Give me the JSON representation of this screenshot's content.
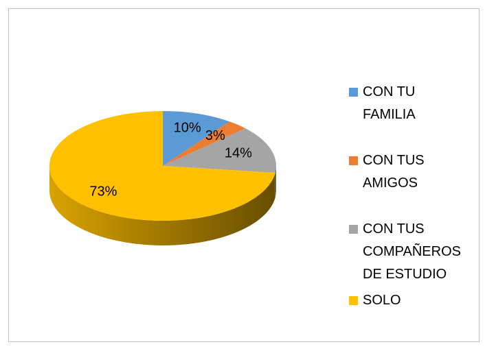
{
  "chart_data": {
    "type": "pie3d",
    "categories": [
      "CON TU FAMILIA",
      "CON TUS AMIGOS",
      "CON TUS COMPAÑEROS DE ESTUDIO",
      "SOLO"
    ],
    "values": [
      10,
      3,
      14,
      73
    ],
    "value_labels": [
      "10%",
      "3%",
      "14%",
      "73%"
    ],
    "colors": [
      "#5b9bd5",
      "#ed7d31",
      "#a5a5a5",
      "#ffc000"
    ],
    "legend": "right"
  }
}
